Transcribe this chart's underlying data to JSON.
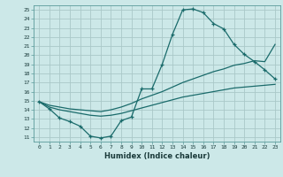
{
  "title": "",
  "xlabel": "Humidex (Indice chaleur)",
  "bg_color": "#cce8e8",
  "grid_color": "#aac8c8",
  "line_color": "#1a6b6b",
  "xlim": [
    -0.5,
    23.5
  ],
  "ylim": [
    10.5,
    25.5
  ],
  "xticks": [
    0,
    1,
    2,
    3,
    4,
    5,
    6,
    7,
    8,
    9,
    10,
    11,
    12,
    13,
    14,
    15,
    16,
    17,
    18,
    19,
    20,
    21,
    22,
    23
  ],
  "yticks": [
    11,
    12,
    13,
    14,
    15,
    16,
    17,
    18,
    19,
    20,
    21,
    22,
    23,
    24,
    25
  ],
  "series_main": {
    "x": [
      0,
      1,
      2,
      3,
      4,
      5,
      6,
      7,
      8,
      9,
      10,
      11,
      12,
      13,
      14,
      15,
      16,
      17,
      18,
      19,
      20,
      21,
      22,
      23
    ],
    "y": [
      14.9,
      14.1,
      13.1,
      12.7,
      12.2,
      11.1,
      10.9,
      11.1,
      12.8,
      13.2,
      16.3,
      16.3,
      19.0,
      22.3,
      25.0,
      25.1,
      24.7,
      23.5,
      22.9,
      21.2,
      20.1,
      19.3,
      18.4,
      17.4
    ]
  },
  "series_upper": {
    "x": [
      0,
      1,
      2,
      3,
      4,
      5,
      6,
      7,
      8,
      9,
      10,
      11,
      12,
      13,
      14,
      15,
      16,
      17,
      18,
      19,
      20,
      21,
      22,
      23
    ],
    "y": [
      14.9,
      14.5,
      14.3,
      14.1,
      14.0,
      13.9,
      13.8,
      14.0,
      14.3,
      14.7,
      15.2,
      15.6,
      16.0,
      16.5,
      17.0,
      17.4,
      17.8,
      18.2,
      18.5,
      18.9,
      19.1,
      19.4,
      19.3,
      21.2
    ]
  },
  "series_lower": {
    "x": [
      0,
      1,
      2,
      3,
      4,
      5,
      6,
      7,
      8,
      9,
      10,
      11,
      12,
      13,
      14,
      15,
      16,
      17,
      18,
      19,
      20,
      21,
      22,
      23
    ],
    "y": [
      14.9,
      14.3,
      14.0,
      13.8,
      13.6,
      13.4,
      13.3,
      13.4,
      13.6,
      13.9,
      14.2,
      14.5,
      14.8,
      15.1,
      15.4,
      15.6,
      15.8,
      16.0,
      16.2,
      16.4,
      16.5,
      16.6,
      16.7,
      16.8
    ]
  }
}
